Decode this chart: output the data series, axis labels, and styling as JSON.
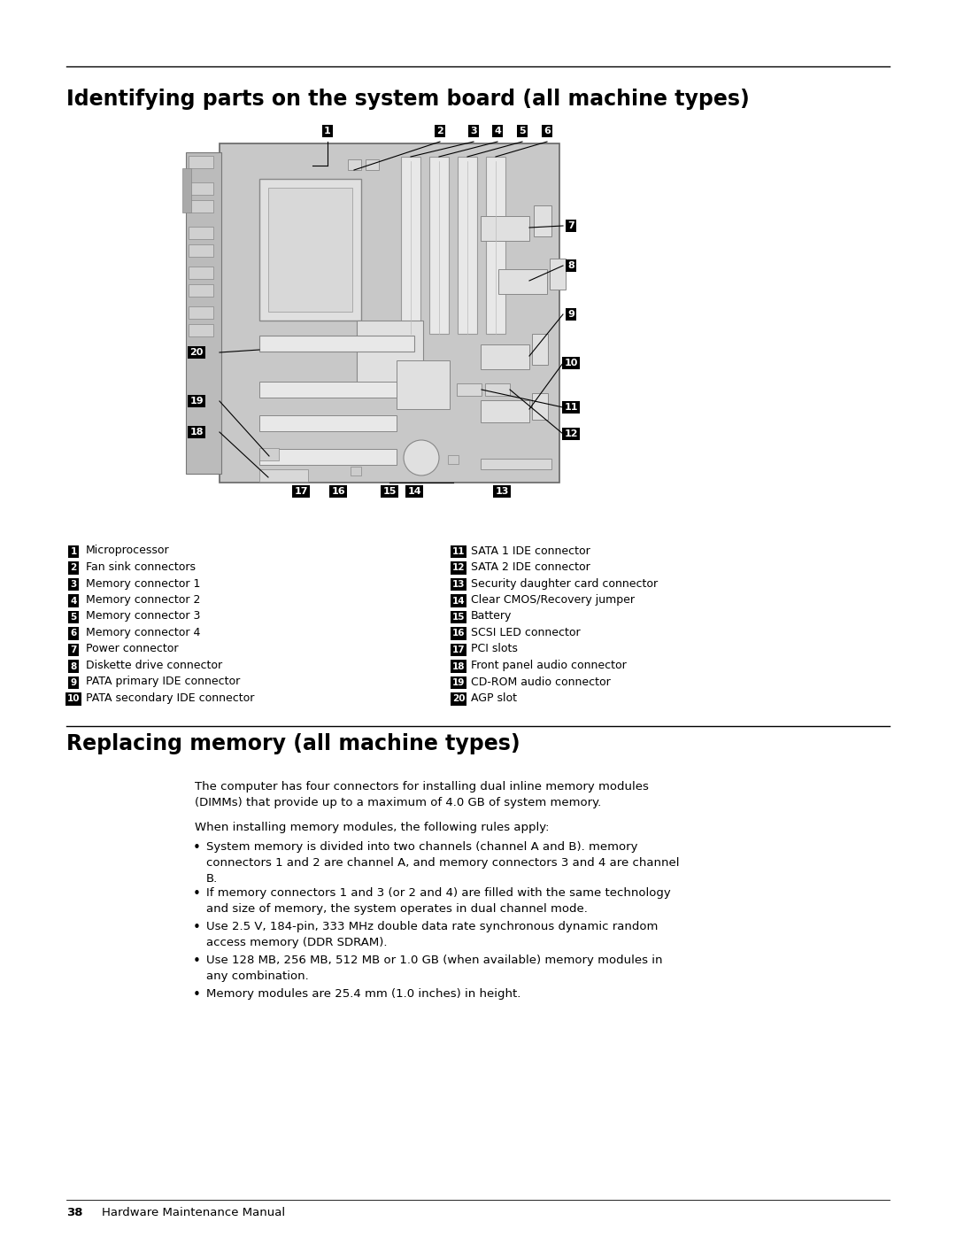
{
  "title1": "Identifying parts on the system board (all machine types)",
  "title2": "Replacing memory (all machine types)",
  "bg_color": "#ffffff",
  "legend_left": [
    [
      "1",
      "Microprocessor"
    ],
    [
      "2",
      "Fan sink connectors"
    ],
    [
      "3",
      "Memory connector 1"
    ],
    [
      "4",
      "Memory connector 2"
    ],
    [
      "5",
      "Memory connector 3"
    ],
    [
      "6",
      "Memory connector 4"
    ],
    [
      "7",
      "Power connector"
    ],
    [
      "8",
      "Diskette drive connector"
    ],
    [
      "9",
      "PATA primary IDE connector"
    ],
    [
      "10",
      "PATA secondary IDE connector"
    ]
  ],
  "legend_right": [
    [
      "11",
      "SATA 1 IDE connector"
    ],
    [
      "12",
      "SATA 2 IDE connector"
    ],
    [
      "13",
      "Security daughter card connector"
    ],
    [
      "14",
      "Clear CMOS/Recovery jumper"
    ],
    [
      "15",
      "Battery"
    ],
    [
      "16",
      "SCSI LED connector"
    ],
    [
      "17",
      "PCI slots"
    ],
    [
      "18",
      "Front panel audio connector"
    ],
    [
      "19",
      "CD-ROM audio connector"
    ],
    [
      "20",
      "AGP slot"
    ]
  ],
  "para1": "The computer has four connectors for installing dual inline memory modules\n(DIMMs) that provide up to a maximum of 4.0 GB of system memory.",
  "para2": "When installing memory modules, the following rules apply:",
  "bullets": [
    "System memory is divided into two channels (channel A and B). memory\nconnectors 1 and 2 are channel A, and memory connectors 3 and 4 are channel\nB.",
    "If memory connectors 1 and 3 (or 2 and 4) are filled with the same technology\nand size of memory, the system operates in dual channel mode.",
    "Use 2.5 V, 184-pin, 333 MHz double data rate synchronous dynamic random\naccess memory (DDR SDRAM).",
    "Use 128 MB, 256 MB, 512 MB or 1.0 GB (when available) memory modules in\nany combination.",
    "Memory modules are 25.4 mm (1.0 inches) in height."
  ],
  "footer_num": "38",
  "footer_text": "Hardware Maintenance Manual"
}
